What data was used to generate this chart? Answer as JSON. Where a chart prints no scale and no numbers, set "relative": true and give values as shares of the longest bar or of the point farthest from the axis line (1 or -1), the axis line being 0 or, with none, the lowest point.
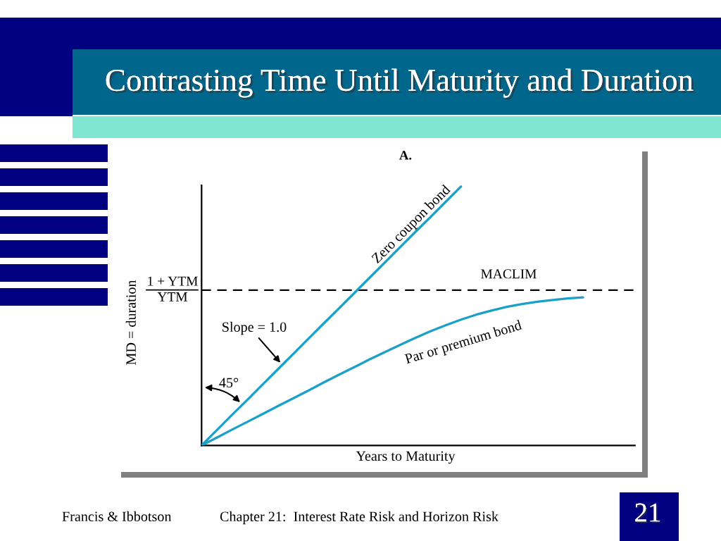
{
  "chart_data": {
    "type": "line",
    "title": "Contrasting Time Until Maturity and Duration",
    "xlabel": "Years to Maturity",
    "ylabel": "MD = duration",
    "relative": true,
    "categories": [
      null,
      null,
      null,
      null,
      null,
      null,
      null,
      null,
      null,
      null,
      null,
      null,
      null,
      null,
      null,
      null,
      null,
      null,
      null,
      null,
      null,
      null,
      null,
      null,
      null,
      null,
      null,
      null,
      null
    ],
    "series": [
      {
        "name": "Zero coupon bond",
        "color": "#1ba1c7",
        "values": [
          0,
          0.059,
          0.118,
          0.176,
          0.235,
          0.294,
          0.353,
          0.412,
          0.471,
          0.529,
          0.588,
          0.647,
          0.706,
          0.765,
          0.824,
          0.882,
          0.941,
          1,
          null,
          null,
          null,
          null,
          null,
          null,
          null,
          null,
          null,
          null,
          null
        ]
      },
      {
        "name": "Par or premium bond",
        "color": "#1ba1c7",
        "values": [
          0,
          0.03,
          0.061,
          0.091,
          0.121,
          0.152,
          0.182,
          0.212,
          0.243,
          0.273,
          0.302,
          0.332,
          0.36,
          0.388,
          0.415,
          0.441,
          0.464,
          0.486,
          0.505,
          0.521,
          0.535,
          0.546,
          0.555,
          0.562,
          0.568,
          0.572,
          null,
          null,
          null
        ]
      }
    ],
    "ref_lines": [
      {
        "axis": "y",
        "value": 0.6,
        "label": "MACLIM",
        "color": "#000000",
        "line_style": "dashed"
      }
    ],
    "annotations": [
      "A.",
      "1 + YTM\nYTM",
      "Slope = 1.0",
      "45°",
      "Francis & Ibbotson",
      "Chapter 21:  Interest Rate Risk and Horizon Risk",
      "21"
    ]
  }
}
